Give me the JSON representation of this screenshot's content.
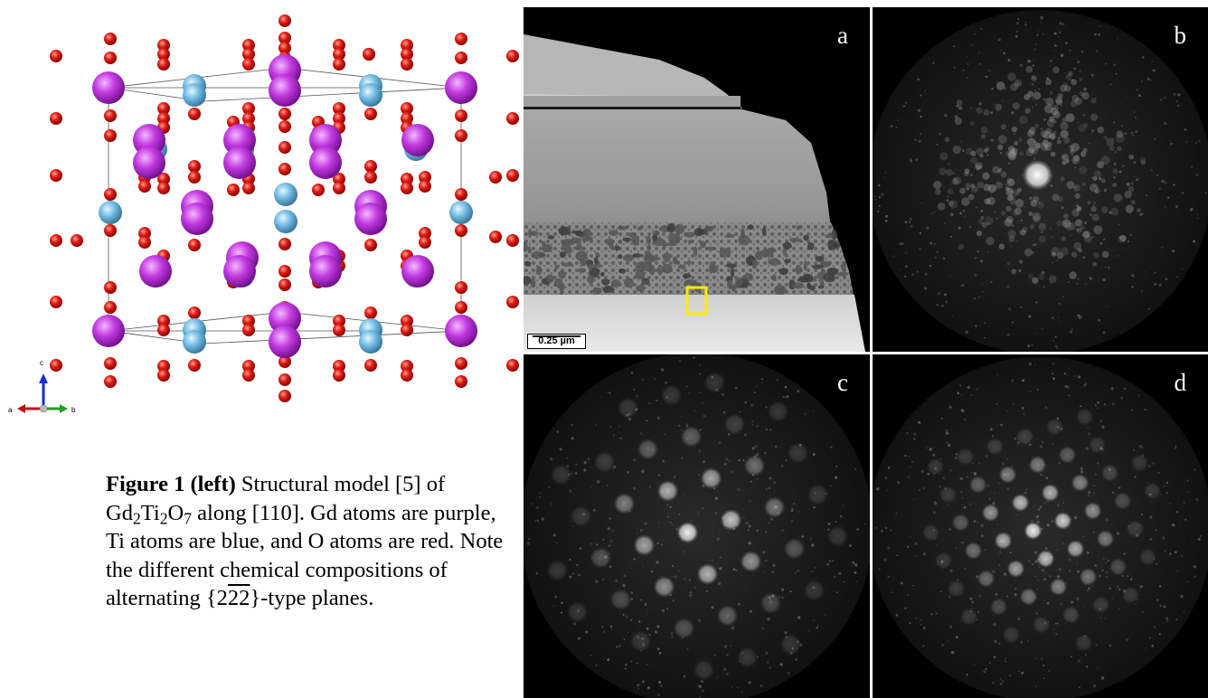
{
  "figure": {
    "caption": {
      "bold_label": "Figure 1 (left)",
      "text_1": " Structural model [5] of ",
      "formula": {
        "gd": "Gd",
        "gd_n": "2",
        "ti": "Ti",
        "ti_n": "2",
        "o": "O",
        "o_n": "7"
      },
      "text_2": " along [110]. Gd atoms are purple, Ti atoms are blue, and O atoms are red. Note the different chemical compositions of alternating {2",
      "overbar_digits": "22",
      "text_3": "}-type planes."
    },
    "axes_indicator": {
      "c": "c",
      "a": "a",
      "b": "b"
    },
    "panels": [
      {
        "label": "a",
        "scale_bar": "0.25 µm"
      },
      {
        "label": "b"
      },
      {
        "label": "c"
      },
      {
        "label": "d"
      }
    ],
    "colors": {
      "gd_atom": "#b52fc9",
      "ti_atom": "#6cb6dc",
      "o_atom": "#d4120f",
      "roi_box": "#ffea00"
    }
  }
}
